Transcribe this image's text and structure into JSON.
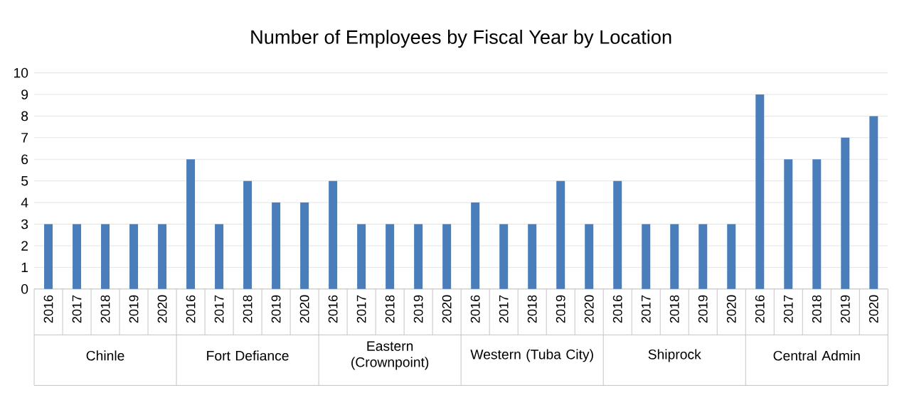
{
  "chart_data": {
    "type": "bar",
    "title": "Number of Employees by Fiscal Year by Location",
    "categories": [
      "2016",
      "2017",
      "2018",
      "2019",
      "2020",
      "2016",
      "2017",
      "2018",
      "2019",
      "2020",
      "2016",
      "2017",
      "2018",
      "2019",
      "2020",
      "2016",
      "2017",
      "2018",
      "2019",
      "2020",
      "2016",
      "2017",
      "2018",
      "2019",
      "2020",
      "2016",
      "2017",
      "2018",
      "2019",
      "2020"
    ],
    "values": [
      3,
      3,
      3,
      3,
      3,
      6,
      3,
      5,
      4,
      4,
      5,
      3,
      3,
      3,
      3,
      4,
      3,
      3,
      5,
      3,
      5,
      3,
      3,
      3,
      3,
      9,
      6,
      6,
      7,
      8
    ],
    "color": "#4a7ebb",
    "annotations": [
      "Chinle",
      "Fort Defiance",
      "Eastern (Crownpoint)",
      "Western (Tuba City)",
      "Shiprock",
      "Central Admin"
    ],
    "ylim": [
      0,
      10
    ],
    "yticks": [
      0,
      1,
      2,
      3,
      4,
      5,
      6,
      7,
      8,
      9,
      10
    ],
    "grid": "y"
  }
}
